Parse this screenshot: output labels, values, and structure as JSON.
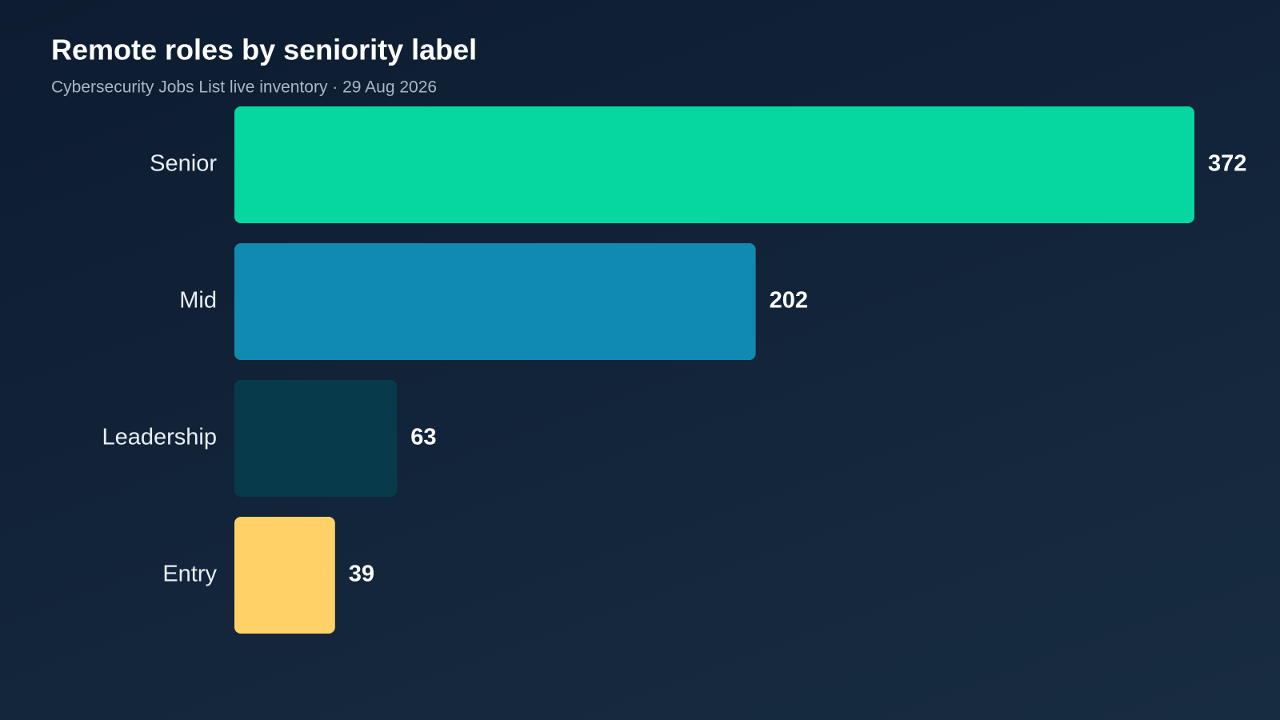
{
  "chart_data": {
    "type": "bar",
    "orientation": "horizontal",
    "title": "Remote roles by seniority label",
    "subtitle": "Cybersecurity Jobs List live inventory · 29 Aug 2026",
    "categories": [
      "Senior",
      "Mid",
      "Leadership",
      "Entry"
    ],
    "values": [
      372,
      202,
      63,
      39
    ],
    "colors": [
      "#06d6a0",
      "#118ab2",
      "#073b4c",
      "#ffd166"
    ]
  }
}
